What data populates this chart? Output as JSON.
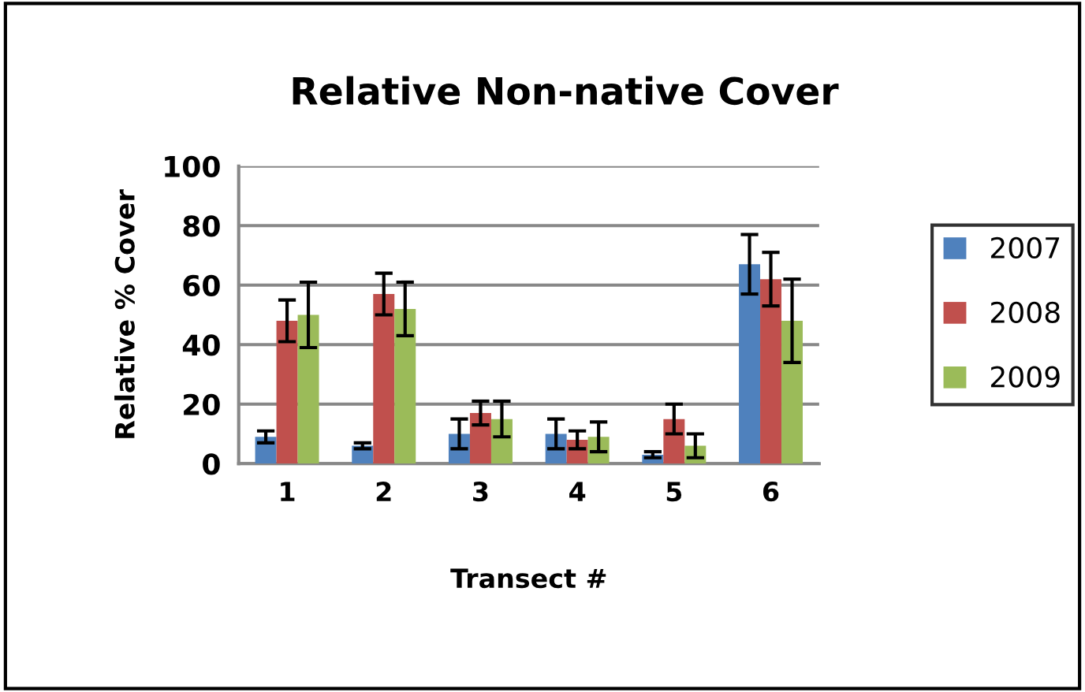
{
  "chart_data": {
    "type": "bar",
    "title": "Relative Non-native Cover",
    "xlabel": "Transect #",
    "ylabel": "Relative % Cover",
    "categories": [
      "1",
      "2",
      "3",
      "4",
      "5",
      "6"
    ],
    "series": [
      {
        "name": "2007",
        "color": "#4f81bd",
        "values": [
          9,
          6,
          10,
          10,
          3,
          67
        ],
        "errors": [
          2,
          1,
          5,
          5,
          1,
          10
        ]
      },
      {
        "name": "2008",
        "color": "#c0504d",
        "values": [
          48,
          57,
          17,
          8,
          15,
          62
        ],
        "errors": [
          7,
          7,
          4,
          3,
          5,
          9
        ]
      },
      {
        "name": "2009",
        "color": "#9bbb59",
        "values": [
          50,
          52,
          15,
          9,
          6,
          48
        ],
        "errors": [
          11,
          9,
          6,
          5,
          4,
          14
        ]
      }
    ],
    "ylim": [
      0,
      100
    ],
    "yticks": [
      0,
      20,
      40,
      60,
      80,
      100
    ],
    "grid": "y",
    "legend": "right"
  }
}
